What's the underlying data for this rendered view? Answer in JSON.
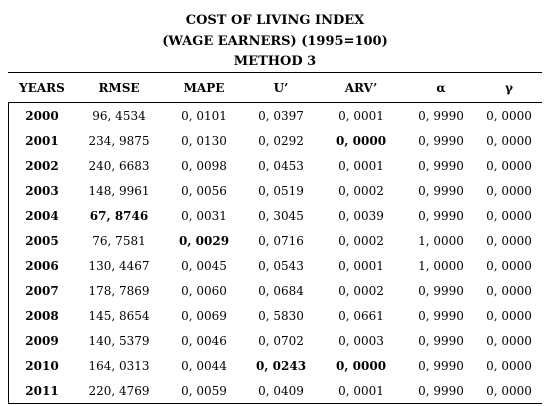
{
  "title": {
    "line1": "COST OF LIVING INDEX",
    "line2": "(WAGE EARNERS) (1995=100)",
    "line3": "METHOD 3"
  },
  "table": {
    "headers": [
      "YEARS",
      "RMSE",
      "MAPE",
      "U’",
      "ARV’",
      "α",
      "γ"
    ],
    "rows": [
      {
        "year": "2000",
        "rmse": "96, 4534",
        "mape": "0, 0101",
        "u": "0, 0397",
        "arv": "0, 0001",
        "alpha": "0, 9990",
        "gamma": "0, 0000",
        "bold": []
      },
      {
        "year": "2001",
        "rmse": "234, 9875",
        "mape": "0, 0130",
        "u": "0, 0292",
        "arv": "0, 0000",
        "alpha": "0, 9990",
        "gamma": "0, 0000",
        "bold": [
          "arv"
        ]
      },
      {
        "year": "2002",
        "rmse": "240, 6683",
        "mape": "0, 0098",
        "u": "0, 0453",
        "arv": "0, 0001",
        "alpha": "0, 9990",
        "gamma": "0, 0000",
        "bold": []
      },
      {
        "year": "2003",
        "rmse": "148, 9961",
        "mape": "0, 0056",
        "u": "0, 0519",
        "arv": "0, 0002",
        "alpha": "0, 9990",
        "gamma": "0, 0000",
        "bold": []
      },
      {
        "year": "2004",
        "rmse": "67, 8746",
        "mape": "0, 0031",
        "u": "0, 3045",
        "arv": "0, 0039",
        "alpha": "0, 9990",
        "gamma": "0, 0000",
        "bold": [
          "rmse"
        ]
      },
      {
        "year": "2005",
        "rmse": "76, 7581",
        "mape": "0, 0029",
        "u": "0, 0716",
        "arv": "0, 0002",
        "alpha": "1, 0000",
        "gamma": "0, 0000",
        "bold": [
          "mape"
        ]
      },
      {
        "year": "2006",
        "rmse": "130, 4467",
        "mape": "0, 0045",
        "u": "0, 0543",
        "arv": "0, 0001",
        "alpha": "1, 0000",
        "gamma": "0, 0000",
        "bold": []
      },
      {
        "year": "2007",
        "rmse": "178, 7869",
        "mape": "0, 0060",
        "u": "0, 0684",
        "arv": "0, 0002",
        "alpha": "0, 9990",
        "gamma": "0, 0000",
        "bold": []
      },
      {
        "year": "2008",
        "rmse": "145, 8654",
        "mape": "0, 0069",
        "u": "0, 5830",
        "arv": "0, 0661",
        "alpha": "0, 9990",
        "gamma": "0, 0000",
        "bold": []
      },
      {
        "year": "2009",
        "rmse": "140, 5379",
        "mape": "0, 0046",
        "u": "0, 0702",
        "arv": "0, 0003",
        "alpha": "0, 9990",
        "gamma": "0, 0000",
        "bold": []
      },
      {
        "year": "2010",
        "rmse": "164, 0313",
        "mape": "0, 0044",
        "u": "0, 0243",
        "arv": "0, 0000",
        "alpha": "0, 9990",
        "gamma": "0, 0000",
        "bold": [
          "u",
          "arv"
        ]
      },
      {
        "year": "2011",
        "rmse": "220, 4769",
        "mape": "0, 0059",
        "u": "0, 0409",
        "arv": "0, 0001",
        "alpha": "0, 9990",
        "gamma": "0, 0000",
        "bold": []
      }
    ]
  }
}
